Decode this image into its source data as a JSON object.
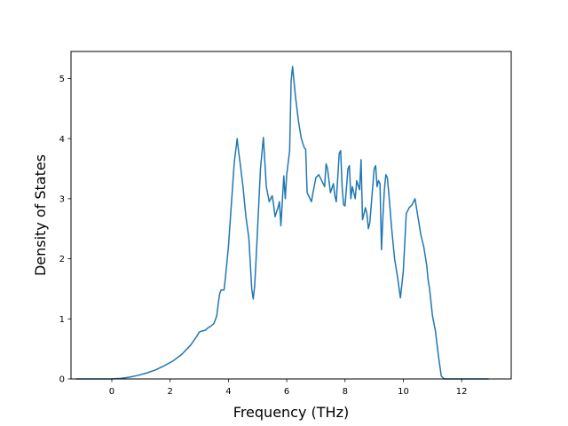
{
  "chart_data": {
    "type": "line",
    "title": "",
    "xlabel": "Frequency (THz)",
    "ylabel": "Density of States",
    "xlim": [
      -1.4,
      13.7
    ],
    "ylim": [
      0,
      5.45
    ],
    "xticks": [
      0,
      2,
      4,
      6,
      8,
      10,
      12
    ],
    "yticks": [
      0,
      1,
      2,
      3,
      4,
      5
    ],
    "grid": false,
    "legend": "none",
    "series": [
      {
        "color": "#1f77b4",
        "x": [
          -1.2,
          0.0,
          0.3,
          0.6,
          0.9,
          1.2,
          1.5,
          1.8,
          2.1,
          2.4,
          2.7,
          2.9,
          3.0,
          3.1,
          3.2,
          3.3,
          3.4,
          3.5,
          3.6,
          3.65,
          3.7,
          3.75,
          3.85,
          3.9,
          4.0,
          4.1,
          4.2,
          4.3,
          4.35,
          4.4,
          4.5,
          4.6,
          4.7,
          4.8,
          4.85,
          4.9,
          4.95,
          5.0,
          5.1,
          5.2,
          5.3,
          5.4,
          5.5,
          5.55,
          5.6,
          5.7,
          5.75,
          5.8,
          5.9,
          5.95,
          6.0,
          6.1,
          6.15,
          6.2,
          6.3,
          6.4,
          6.5,
          6.6,
          6.65,
          6.7,
          6.8,
          6.85,
          6.9,
          7.0,
          7.1,
          7.2,
          7.3,
          7.35,
          7.4,
          7.5,
          7.6,
          7.65,
          7.7,
          7.8,
          7.85,
          7.9,
          7.95,
          8.0,
          8.1,
          8.15,
          8.2,
          8.25,
          8.3,
          8.35,
          8.4,
          8.5,
          8.55,
          8.6,
          8.7,
          8.75,
          8.8,
          8.85,
          8.9,
          9.0,
          9.05,
          9.1,
          9.15,
          9.2,
          9.25,
          9.3,
          9.35,
          9.4,
          9.45,
          9.5,
          9.6,
          9.7,
          9.8,
          9.9,
          10.0,
          10.1,
          10.2,
          10.3,
          10.4,
          10.5,
          10.6,
          10.7,
          10.8,
          10.85,
          10.9,
          11.0,
          11.1,
          11.2,
          11.3,
          11.4,
          11.5,
          11.6,
          11.7,
          11.8,
          12.9
        ],
        "y": [
          0,
          0,
          0.01,
          0.03,
          0.06,
          0.1,
          0.15,
          0.22,
          0.3,
          0.41,
          0.56,
          0.7,
          0.78,
          0.8,
          0.81,
          0.85,
          0.88,
          0.92,
          1.05,
          1.25,
          1.42,
          1.48,
          1.48,
          1.7,
          2.2,
          2.9,
          3.6,
          4.0,
          3.78,
          3.6,
          3.2,
          2.7,
          2.35,
          1.5,
          1.33,
          1.55,
          2.0,
          2.5,
          3.5,
          4.02,
          3.2,
          2.95,
          3.05,
          2.9,
          2.7,
          2.85,
          2.95,
          2.55,
          3.38,
          3.0,
          3.4,
          3.8,
          4.95,
          5.2,
          4.7,
          4.3,
          4.0,
          3.85,
          3.82,
          3.1,
          3.0,
          2.95,
          3.1,
          3.35,
          3.4,
          3.3,
          3.2,
          3.58,
          3.5,
          3.1,
          3.25,
          3.05,
          2.95,
          3.75,
          3.8,
          3.2,
          2.9,
          2.88,
          3.5,
          3.55,
          3.0,
          3.2,
          3.1,
          3.0,
          3.3,
          3.15,
          3.65,
          2.65,
          2.85,
          2.75,
          2.5,
          2.6,
          2.9,
          3.5,
          3.55,
          3.2,
          3.3,
          3.25,
          2.15,
          2.7,
          3.15,
          3.4,
          3.35,
          3.1,
          2.5,
          2.0,
          1.7,
          1.35,
          1.8,
          2.75,
          2.85,
          2.9,
          3.0,
          2.7,
          2.4,
          2.2,
          1.9,
          1.65,
          1.5,
          1.05,
          0.8,
          0.4,
          0.05,
          0,
          0,
          0,
          0,
          0,
          0
        ]
      }
    ]
  }
}
